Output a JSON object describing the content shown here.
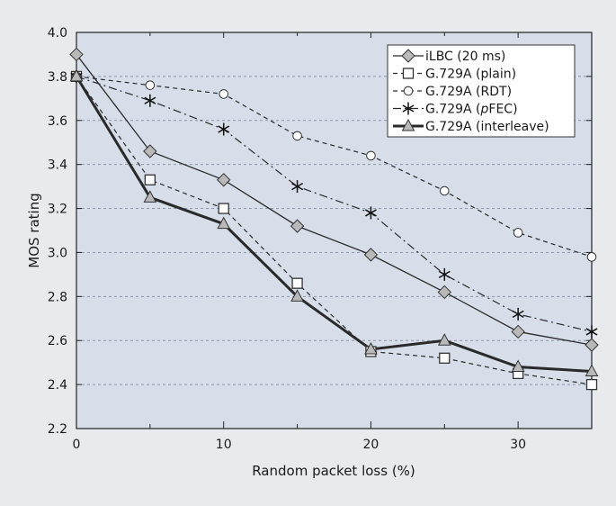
{
  "chart_data": {
    "type": "line",
    "xlabel": "Random packet loss (%)",
    "ylabel": "MOS rating",
    "xlim": [
      0,
      35
    ],
    "ylim": [
      2.2,
      4.0
    ],
    "xticks": [
      "0",
      "10",
      "20",
      "30"
    ],
    "yticks": [
      "2.2",
      "2.4",
      "2.6",
      "2.8",
      "3.0",
      "3.2",
      "3.4",
      "3.6",
      "3.8",
      "4.0"
    ],
    "grid": "horizontal dashed",
    "legend_position": "top-right",
    "plot_background": "#d7deea",
    "series": [
      {
        "name": "iLBC (20 ms)",
        "marker": "diamond",
        "line": "solid-thin",
        "x": [
          0,
          5,
          10,
          15,
          20,
          25,
          30,
          35
        ],
        "values": [
          3.9,
          3.46,
          3.33,
          3.12,
          2.99,
          2.82,
          2.64,
          2.58
        ]
      },
      {
        "name": "G.729A (plain)",
        "marker": "square",
        "line": "dashed",
        "x": [
          0,
          5,
          10,
          15,
          20,
          25,
          30,
          35
        ],
        "values": [
          3.8,
          3.33,
          3.2,
          2.86,
          2.55,
          2.52,
          2.45,
          2.4
        ]
      },
      {
        "name": "G.729A (RDT)",
        "marker": "circle",
        "line": "dashed",
        "x": [
          0,
          5,
          10,
          15,
          20,
          25,
          30,
          35
        ],
        "values": [
          3.8,
          3.76,
          3.72,
          3.53,
          3.44,
          3.28,
          3.09,
          2.98
        ]
      },
      {
        "name": "G.729A (",
        "name_italic": "p",
        "name_suffix": "FEC)",
        "marker": "asterisk",
        "line": "dashdot",
        "x": [
          0,
          5,
          10,
          15,
          20,
          25,
          30,
          35
        ],
        "values": [
          3.8,
          3.69,
          3.56,
          3.3,
          3.18,
          2.9,
          2.72,
          2.64
        ]
      },
      {
        "name": "G.729A (interleave)",
        "marker": "triangle",
        "line": "solid-thick",
        "x": [
          0,
          5,
          10,
          15,
          20,
          25,
          30,
          35
        ],
        "values": [
          3.8,
          3.25,
          3.13,
          2.8,
          2.56,
          2.6,
          2.48,
          2.46
        ]
      }
    ]
  }
}
